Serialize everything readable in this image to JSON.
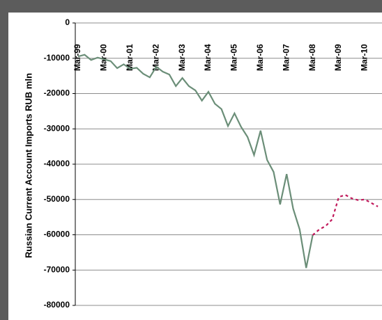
{
  "chart_data": {
    "type": "line",
    "y_label": "Russian Current Account Imports RUB mln",
    "categories": [
      "Mar-99",
      null,
      null,
      null,
      "Mar-00",
      null,
      null,
      null,
      "Mar-01",
      null,
      null,
      null,
      "Mar-02",
      null,
      null,
      null,
      "Mar-03",
      null,
      null,
      null,
      "Mar-04",
      null,
      null,
      null,
      "Mar-05",
      null,
      null,
      null,
      "Mar-06",
      null,
      null,
      null,
      "Mar-07",
      null,
      null,
      null,
      "Mar-08",
      null,
      null,
      null,
      "Mar-09",
      null,
      null,
      null,
      "Mar-10",
      null,
      null
    ],
    "series": [
      {
        "color": "#6b8e78",
        "style": "solid",
        "values": [
          -9500,
          -9000,
          -10500,
          -9800,
          -10300,
          -10800,
          -12800,
          -11700,
          -13000,
          -12700,
          -14400,
          -15400,
          -12400,
          -13800,
          -14600,
          -17900,
          -15600,
          -17900,
          -19100,
          -22000,
          -19500,
          -22900,
          -24400,
          -29200,
          -25600,
          -29400,
          -32300,
          -37400,
          -30500,
          -38800,
          -42200,
          -51400,
          -42800,
          -52600,
          -58500,
          -69400,
          -60100,
          null,
          null,
          null,
          null,
          null,
          null,
          null,
          null,
          null,
          null
        ]
      },
      {
        "color": "#c0185a",
        "style": "dotted",
        "values": [
          null,
          null,
          null,
          null,
          null,
          null,
          null,
          null,
          null,
          null,
          null,
          null,
          null,
          null,
          null,
          null,
          null,
          null,
          null,
          null,
          null,
          null,
          null,
          null,
          null,
          null,
          null,
          null,
          null,
          null,
          null,
          null,
          null,
          null,
          null,
          null,
          -60100,
          -58500,
          -57500,
          -55600,
          -49300,
          -48700,
          -49700,
          -50200,
          -50000,
          -51000,
          -52000
        ]
      }
    ],
    "ylim": [
      -80000,
      0
    ],
    "yticks": [
      0,
      -10000,
      -20000,
      -30000,
      -40000,
      -50000,
      -60000,
      -70000,
      -80000
    ],
    "grid": true
  }
}
